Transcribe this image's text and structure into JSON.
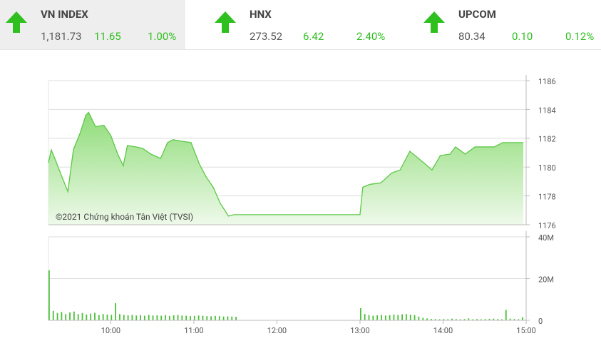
{
  "header": {
    "items": [
      {
        "name": "VN INDEX",
        "value": "1,181.73",
        "change": "11.65",
        "percent": "1.00%"
      },
      {
        "name": "HNX",
        "value": "273.52",
        "change": "6.42",
        "percent": "2.40%"
      },
      {
        "name": "UPCOM",
        "value": "80.34",
        "change": "0.10",
        "percent": "0.12%"
      }
    ]
  },
  "chart_data": [
    {
      "type": "area",
      "color": "#5cc847",
      "annotation": "©2021 Chứng khoán Tân Việt (TVSI)",
      "x": [
        "09:15",
        "09:17",
        "09:20",
        "09:24",
        "09:29",
        "09:33",
        "09:38",
        "09:42",
        "09:44",
        "09:49",
        "09:55",
        "10:00",
        "10:05",
        "10:09",
        "10:12",
        "10:18",
        "10:23",
        "10:29",
        "10:36",
        "10:41",
        "10:45",
        "10:51",
        "10:58",
        "11:04",
        "11:09",
        "11:14",
        "11:19",
        "11:25",
        "11:29",
        "12:00",
        "13:00",
        "13:02",
        "13:07",
        "13:15",
        "13:23",
        "13:29",
        "13:36",
        "13:41",
        "13:46",
        "13:52",
        "13:58",
        "14:05",
        "14:09",
        "14:16",
        "14:23",
        "14:29",
        "14:37",
        "14:43",
        "14:58"
      ],
      "values": [
        1180.3,
        1181.2,
        1180.5,
        1179.5,
        1178.3,
        1181.2,
        1182.4,
        1183.6,
        1183.8,
        1182.8,
        1182.9,
        1182.2,
        1180.9,
        1180.1,
        1181.5,
        1181.4,
        1181.3,
        1180.9,
        1180.6,
        1181.7,
        1181.9,
        1181.8,
        1181.7,
        1180.2,
        1179.3,
        1178.6,
        1177.5,
        1176.6,
        1176.7,
        1176.7,
        1176.7,
        1178.6,
        1178.8,
        1178.9,
        1179.6,
        1179.8,
        1181.1,
        1180.7,
        1180.3,
        1179.8,
        1180.8,
        1180.9,
        1181.4,
        1180.9,
        1181.4,
        1181.4,
        1181.4,
        1181.7,
        1181.7
      ],
      "xlim": [
        "09:15",
        "15:00"
      ],
      "ylim": [
        1176,
        1186
      ],
      "yticks": [
        1176,
        1178,
        1180,
        1182,
        1184,
        1186
      ],
      "grid": true
    },
    {
      "type": "bar",
      "color": "#4cbf3a",
      "x": [
        "09:15",
        "09:18",
        "09:21",
        "09:24",
        "09:27",
        "09:30",
        "09:33",
        "09:36",
        "09:39",
        "09:42",
        "09:45",
        "09:48",
        "09:51",
        "09:54",
        "09:57",
        "10:00",
        "10:03",
        "10:06",
        "10:09",
        "10:12",
        "10:15",
        "10:18",
        "10:21",
        "10:24",
        "10:27",
        "10:30",
        "10:33",
        "10:36",
        "10:39",
        "10:42",
        "10:45",
        "10:48",
        "10:51",
        "10:54",
        "10:57",
        "11:00",
        "11:03",
        "11:06",
        "11:09",
        "11:12",
        "11:15",
        "11:18",
        "11:21",
        "11:24",
        "11:27",
        "11:30",
        "13:00",
        "13:03",
        "13:06",
        "13:09",
        "13:12",
        "13:15",
        "13:18",
        "13:21",
        "13:24",
        "13:27",
        "13:30",
        "13:33",
        "13:36",
        "13:39",
        "13:42",
        "13:45",
        "13:48",
        "13:51",
        "13:54",
        "13:57",
        "14:00",
        "14:03",
        "14:06",
        "14:09",
        "14:12",
        "14:15",
        "14:18",
        "14:21",
        "14:24",
        "14:27",
        "14:30",
        "14:33",
        "14:36",
        "14:39",
        "14:42",
        "14:45",
        "14:48",
        "14:51",
        "14:54",
        "14:57"
      ],
      "values": [
        24,
        4.5,
        3.5,
        4,
        3,
        3.8,
        4.2,
        3,
        3.5,
        2.8,
        3.2,
        3.6,
        2.5,
        3,
        2.8,
        2.6,
        8.2,
        3,
        2.6,
        2.4,
        2.6,
        2.3,
        2.5,
        2.2,
        2.6,
        2.3,
        2.4,
        2.2,
        2.5,
        2.1,
        2.4,
        2.6,
        2.3,
        2.2,
        2.0,
        2.1,
        2.3,
        2.2,
        2.0,
        1.9,
        2.1,
        2.0,
        1.8,
        1.9,
        1.8,
        1.7,
        5.8,
        3,
        2.5,
        2.2,
        2.4,
        2.6,
        2.3,
        2.5,
        2.8,
        2.6,
        2.9,
        3.0,
        2.7,
        2.5,
        1.8,
        1.2,
        0.9,
        0.7,
        0.6,
        0.5,
        0.6,
        0.5,
        0.8,
        0.6,
        0.5,
        0.6,
        0.9,
        0.5,
        0.6,
        0.5,
        0.6,
        0.7,
        0.8,
        0.6,
        0.5,
        5,
        0.8,
        0.6,
        0.5,
        1.5
      ],
      "xlim": [
        "09:15",
        "15:00"
      ],
      "xticks": [
        "10:00",
        "11:00",
        "12:00",
        "13:00",
        "14:00",
        "15:00"
      ],
      "ylim": [
        0,
        40
      ],
      "yticks": [
        {
          "value": 0,
          "label": "0"
        },
        {
          "value": 20,
          "label": "20M"
        },
        {
          "value": 40,
          "label": "40M"
        }
      ],
      "grid": true
    }
  ]
}
